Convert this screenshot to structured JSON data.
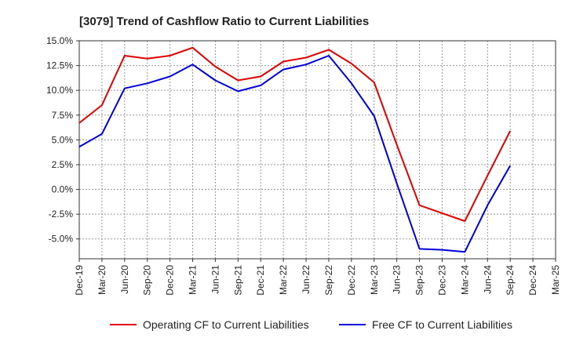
{
  "chart_data": {
    "type": "line",
    "title": "[3079]  Trend of Cashflow Ratio to Current Liabilities",
    "xlabel": "",
    "ylabel": "",
    "categories": [
      "Dec-19",
      "Mar-20",
      "Jun-20",
      "Sep-20",
      "Dec-20",
      "Mar-21",
      "Jun-21",
      "Sep-21",
      "Dec-21",
      "Mar-22",
      "Jun-22",
      "Sep-22",
      "Dec-22",
      "Mar-23",
      "Jun-23",
      "Sep-23",
      "Dec-23",
      "Mar-24",
      "Jun-24",
      "Sep-24",
      "Dec-24",
      "Mar-25"
    ],
    "ylim": [
      -7.0,
      15.0
    ],
    "yticks": [
      15.0,
      12.5,
      10.0,
      7.5,
      5.0,
      2.5,
      0.0,
      -2.5,
      -5.0
    ],
    "ytick_labels": [
      "15.0%",
      "12.5%",
      "10.0%",
      "7.5%",
      "5.0%",
      "2.5%",
      "0.0%",
      "-2.5%",
      "-5.0%"
    ],
    "grid": true,
    "legend_position": "bottom",
    "series": [
      {
        "name": "Operating CF to Current Liabilities",
        "color": "#e00000",
        "values": [
          6.7,
          8.5,
          13.5,
          13.2,
          13.5,
          14.3,
          12.4,
          11.0,
          11.4,
          12.9,
          13.3,
          14.1,
          12.7,
          10.8,
          4.5,
          -1.6,
          -2.4,
          -3.2,
          1.4,
          5.9,
          null,
          null
        ]
      },
      {
        "name": "Free CF to Current Liabilities",
        "color": "#0000dd",
        "values": [
          4.3,
          5.6,
          10.2,
          10.7,
          11.4,
          12.6,
          11.0,
          9.9,
          10.5,
          12.1,
          12.6,
          13.5,
          10.7,
          7.4,
          0.6,
          -6.0,
          -6.1,
          -6.3,
          -1.6,
          2.4,
          null,
          null
        ]
      }
    ]
  }
}
